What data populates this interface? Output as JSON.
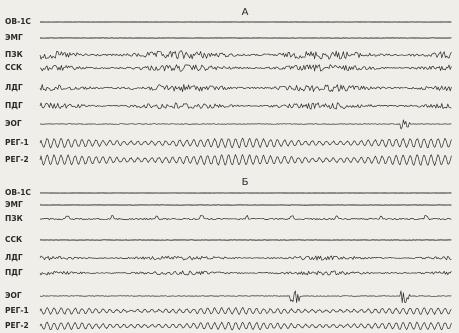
{
  "panels": [
    {
      "title": "А",
      "channels": [
        "ОВ-1С",
        "ЭМГ",
        "ПЗК",
        "ССК",
        "ЛДГ",
        "ПДГ",
        "ЭОГ",
        "РЕГ-1",
        "РЕГ-2"
      ]
    },
    {
      "title": "Б",
      "channels": [
        "ОВ-1С",
        "ЭМГ",
        "ПЗК",
        "ССК",
        "ЛДГ",
        "ПДГ",
        "ЭОГ",
        "РЕГ-1",
        "РЕГ-2"
      ]
    }
  ]
}
